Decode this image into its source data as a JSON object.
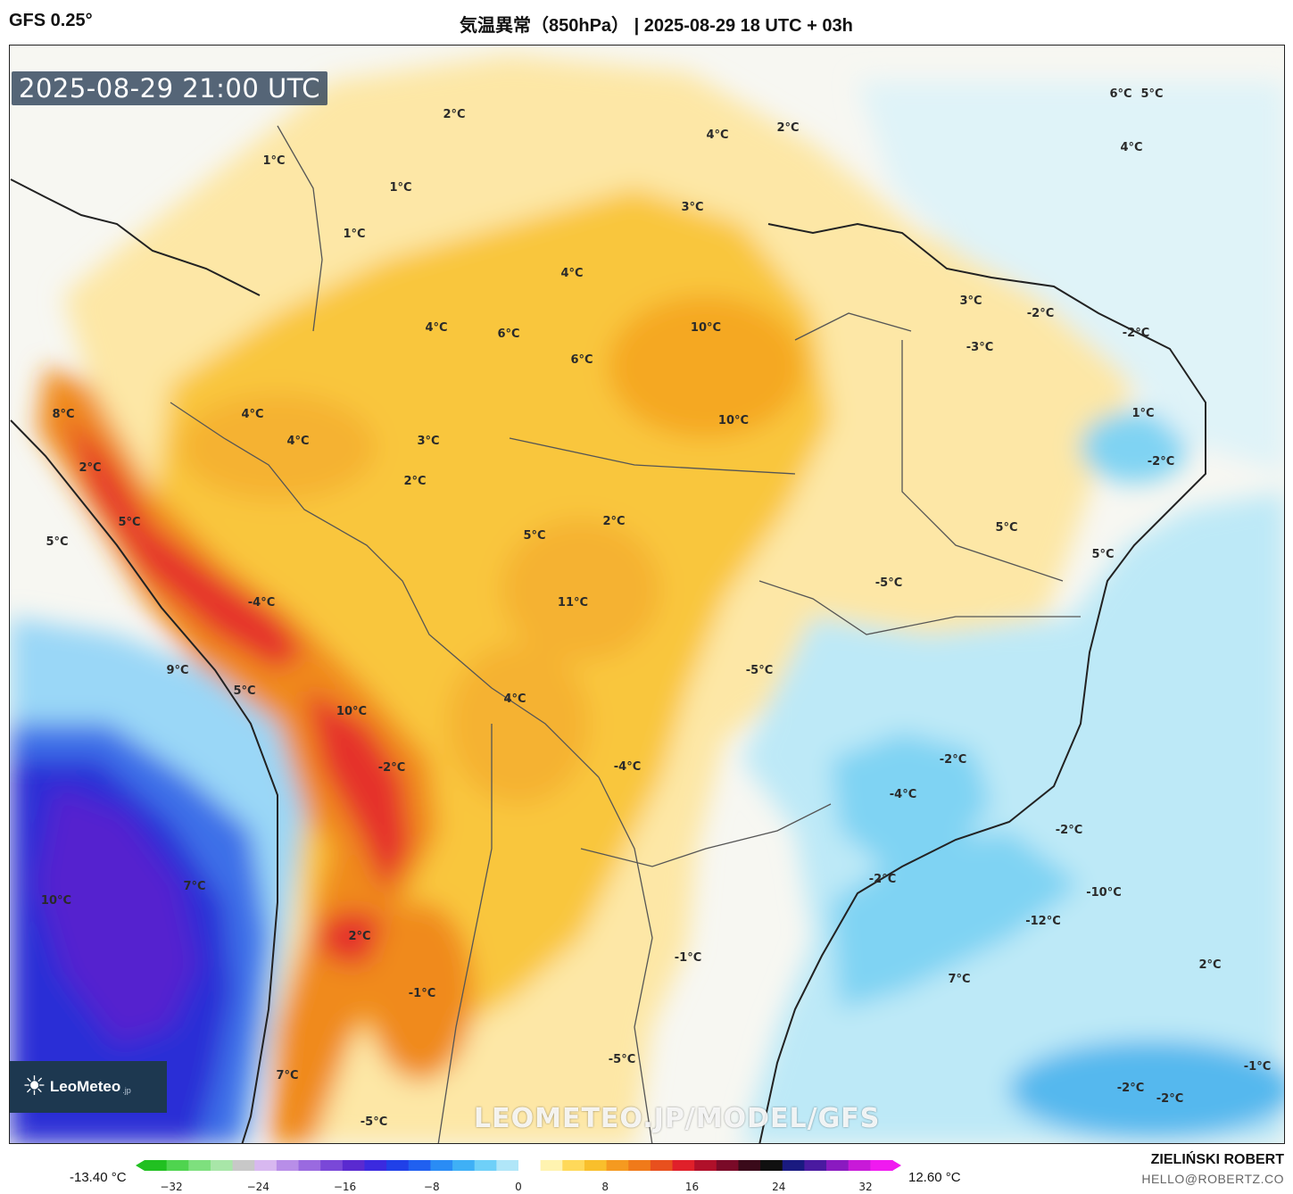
{
  "header": {
    "model": "GFS 0.25°",
    "title": "気温異常（850hPa） | 2025-08-29 18 UTC + 03h"
  },
  "map": {
    "valid_time": "2025-08-29 21:00 UTC",
    "watermark": "LEOMETEO.JP/MODEL/GFS",
    "contour_labels": [
      "2°C",
      "4°C",
      "2°C",
      "1°C",
      "1°C",
      "1°C",
      "6°C",
      "5°C",
      "4°C",
      "3°C",
      "4°C",
      "4°C",
      "6°C",
      "6°C",
      "10°C",
      "10°C",
      "8°C",
      "2°C",
      "5°C",
      "5°C",
      "4°C",
      "4°C",
      "3°C",
      "2°C",
      "3°C",
      "-2°C",
      "-3°C",
      "-2°C",
      "1°C",
      "-2°C",
      "5°C",
      "5°C",
      "5°C",
      "2°C",
      "11°C",
      "-5°C",
      "-4°C",
      "9°C",
      "5°C",
      "10°C",
      "4°C",
      "-2°C",
      "-4°C",
      "-5°C",
      "-2°C",
      "-4°C",
      "-2°C",
      "-2°C",
      "-10°C",
      "-12°C",
      "10°C",
      "7°C",
      "2°C",
      "-1°C",
      "-1°C",
      "7°C",
      "2°C",
      "7°C",
      "-5°C",
      "-5°C",
      "-1°C",
      "-2°C",
      "-2°C"
    ],
    "logo": {
      "icon": "sun-icon",
      "name": "LeoMeteo",
      "suffix": ".jp"
    }
  },
  "colorbar": {
    "min_label": "-13.40 °C",
    "max_label": "12.60 °C",
    "ticks": [
      "−32",
      "−24",
      "−16",
      "−8",
      "0",
      "8",
      "16",
      "24",
      "32"
    ]
  },
  "footer": {
    "author": "ZIELIŃSKI ROBERT",
    "email": "HELLO@ROBERTZ.CO"
  },
  "colors": {
    "cold": "#2b2fd6",
    "cool": "#7fd3f3",
    "neutral": "#f7f7f2",
    "mild": "#fde39a",
    "warm": "#f9c63c",
    "hot": "#f08a1f",
    "very_hot": "#e5202a"
  }
}
